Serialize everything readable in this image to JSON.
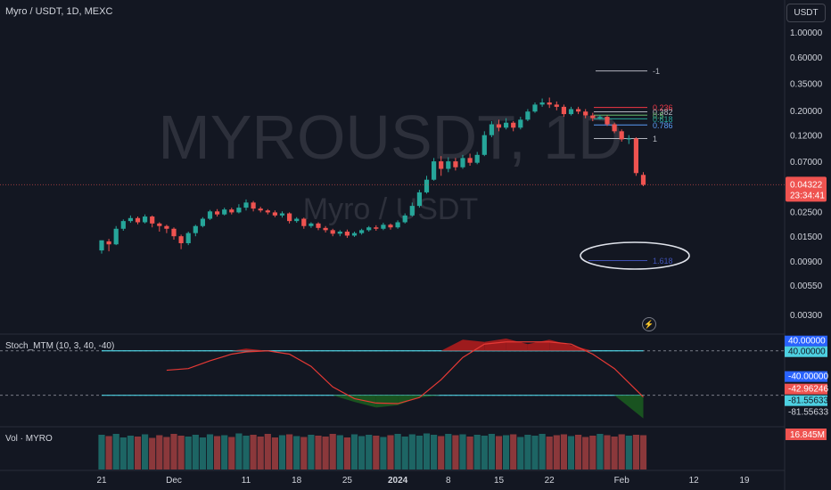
{
  "header": {
    "symbol": "Myro / USDT, 1D, MEXC"
  },
  "watermark": {
    "main": "MYROUSDT, 1D",
    "sub": "Myro / USDT"
  },
  "currency_button": "USDT",
  "indicator": {
    "name": "Stoch_MTM (10, 3, 40, -40)"
  },
  "volume": {
    "name": "Vol · MYRO",
    "last_label": "16.845M"
  },
  "colors": {
    "bg": "#131722",
    "up": "#26a69a",
    "down": "#ef5350",
    "text": "#d1d4dc",
    "grid": "#2a2e39"
  },
  "chart_data": [
    {
      "type": "candlestick",
      "scale": "log",
      "y_ticks": [
        "1.00000",
        "0.60000",
        "0.35000",
        "0.20000",
        "0.12000",
        "0.07000",
        "0.04322",
        "0.02500",
        "0.01500",
        "0.00900",
        "0.00550",
        "0.00300"
      ],
      "y_tick_values": [
        1.0,
        0.6,
        0.35,
        0.2,
        0.12,
        0.07,
        0.04322,
        0.025,
        0.015,
        0.009,
        0.0055,
        0.003
      ],
      "last_price": "0.04322",
      "countdown": "23:34:41",
      "x_ticks": [
        "21",
        "Dec",
        "11",
        "18",
        "25",
        "2024",
        "8",
        "15",
        "22",
        "Feb",
        "12",
        "19"
      ],
      "x_tick_days": [
        0,
        10,
        20,
        27,
        34,
        41,
        48,
        55,
        62,
        72,
        82,
        89
      ],
      "fib_levels": [
        {
          "label": "-1",
          "value": 0.45,
          "color": "#b2b5be"
        },
        {
          "label": "0.236",
          "value": 0.212,
          "color": "#f23645"
        },
        {
          "label": "0.382",
          "value": 0.194,
          "color": "#b2b5be"
        },
        {
          "label": "0.5",
          "value": 0.181,
          "color": "#66bb6a"
        },
        {
          "label": "0.618",
          "value": 0.168,
          "color": "#26a69a"
        },
        {
          "label": "0.786",
          "value": 0.148,
          "color": "#5b9cf6"
        },
        {
          "label": "1",
          "value": 0.112,
          "color": "#b2b5be"
        },
        {
          "label": "1.618",
          "value": 0.0091,
          "color": "#3f51b5"
        }
      ],
      "candles": [
        [
          0,
          0.0112,
          0.0138,
          0.0105,
          0.0135
        ],
        [
          1,
          0.0135,
          0.0127,
          0.011,
          0.0142
        ],
        [
          2,
          0.0127,
          0.0175,
          0.0125,
          0.0185
        ],
        [
          3,
          0.0175,
          0.0205,
          0.0168,
          0.0212
        ],
        [
          4,
          0.0205,
          0.0218,
          0.0198,
          0.023
        ],
        [
          5,
          0.0218,
          0.02,
          0.0192,
          0.0225
        ],
        [
          6,
          0.02,
          0.0225,
          0.0195,
          0.0235
        ],
        [
          7,
          0.0225,
          0.0195,
          0.018,
          0.023
        ],
        [
          8,
          0.0195,
          0.0185,
          0.0165,
          0.02
        ],
        [
          9,
          0.0185,
          0.0175,
          0.016,
          0.019
        ],
        [
          10,
          0.0175,
          0.015,
          0.014,
          0.018
        ],
        [
          11,
          0.015,
          0.013,
          0.0115,
          0.0155
        ],
        [
          12,
          0.013,
          0.016,
          0.0125,
          0.0165
        ],
        [
          13,
          0.016,
          0.0185,
          0.015,
          0.019
        ],
        [
          14,
          0.0185,
          0.0215,
          0.018,
          0.0222
        ],
        [
          15,
          0.0215,
          0.025,
          0.021,
          0.0258
        ],
        [
          16,
          0.025,
          0.0235,
          0.0225,
          0.0262
        ],
        [
          17,
          0.0235,
          0.026,
          0.023,
          0.027
        ],
        [
          18,
          0.026,
          0.0245,
          0.0235,
          0.027
        ],
        [
          19,
          0.0245,
          0.027,
          0.024,
          0.029
        ],
        [
          20,
          0.027,
          0.03,
          0.0255,
          0.032
        ],
        [
          21,
          0.03,
          0.0265,
          0.025,
          0.031
        ],
        [
          22,
          0.0265,
          0.0255,
          0.0245,
          0.0275
        ],
        [
          23,
          0.0255,
          0.0245,
          0.0235,
          0.0262
        ],
        [
          24,
          0.0245,
          0.023,
          0.0222,
          0.0255
        ],
        [
          25,
          0.023,
          0.024,
          0.022,
          0.025
        ],
        [
          26,
          0.024,
          0.0205,
          0.0195,
          0.0245
        ],
        [
          27,
          0.0205,
          0.0215,
          0.0198,
          0.0222
        ],
        [
          28,
          0.0215,
          0.0185,
          0.0175,
          0.022
        ],
        [
          29,
          0.0185,
          0.0195,
          0.0178,
          0.02
        ],
        [
          30,
          0.0195,
          0.0178,
          0.017,
          0.02
        ],
        [
          31,
          0.0178,
          0.017,
          0.0162,
          0.0185
        ],
        [
          32,
          0.017,
          0.0158,
          0.015,
          0.0175
        ],
        [
          33,
          0.0158,
          0.0165,
          0.015,
          0.017
        ],
        [
          34,
          0.0165,
          0.0152,
          0.0145,
          0.0172
        ],
        [
          35,
          0.0152,
          0.016,
          0.0148,
          0.0165
        ],
        [
          36,
          0.016,
          0.017,
          0.0155,
          0.0175
        ],
        [
          37,
          0.017,
          0.018,
          0.0165,
          0.0185
        ],
        [
          38,
          0.018,
          0.0175,
          0.0168,
          0.0188
        ],
        [
          39,
          0.0175,
          0.019,
          0.017,
          0.0198
        ],
        [
          40,
          0.019,
          0.018,
          0.0172,
          0.0195
        ],
        [
          41,
          0.018,
          0.02,
          0.0175,
          0.0208
        ],
        [
          42,
          0.02,
          0.023,
          0.0195,
          0.024
        ],
        [
          43,
          0.023,
          0.028,
          0.0225,
          0.03
        ],
        [
          44,
          0.028,
          0.037,
          0.027,
          0.039
        ],
        [
          45,
          0.037,
          0.048,
          0.036,
          0.052
        ],
        [
          46,
          0.048,
          0.07,
          0.047,
          0.075
        ],
        [
          47,
          0.07,
          0.06,
          0.052,
          0.078
        ],
        [
          48,
          0.06,
          0.07,
          0.056,
          0.076
        ],
        [
          49,
          0.07,
          0.062,
          0.058,
          0.075
        ],
        [
          50,
          0.062,
          0.075,
          0.06,
          0.08
        ],
        [
          51,
          0.075,
          0.068,
          0.064,
          0.082
        ],
        [
          52,
          0.068,
          0.08,
          0.066,
          0.085
        ],
        [
          53,
          0.08,
          0.12,
          0.078,
          0.13
        ],
        [
          54,
          0.12,
          0.15,
          0.115,
          0.16
        ],
        [
          55,
          0.15,
          0.14,
          0.13,
          0.165
        ],
        [
          56,
          0.14,
          0.155,
          0.135,
          0.17
        ],
        [
          57,
          0.155,
          0.14,
          0.13,
          0.16
        ],
        [
          58,
          0.14,
          0.165,
          0.135,
          0.175
        ],
        [
          59,
          0.165,
          0.195,
          0.16,
          0.205
        ],
        [
          60,
          0.195,
          0.225,
          0.19,
          0.235
        ],
        [
          61,
          0.225,
          0.235,
          0.215,
          0.255
        ],
        [
          62,
          0.235,
          0.225,
          0.21,
          0.26
        ],
        [
          63,
          0.225,
          0.215,
          0.2,
          0.24
        ],
        [
          64,
          0.215,
          0.185,
          0.175,
          0.225
        ],
        [
          65,
          0.185,
          0.205,
          0.18,
          0.215
        ],
        [
          66,
          0.205,
          0.195,
          0.185,
          0.215
        ],
        [
          67,
          0.195,
          0.18,
          0.17,
          0.205
        ],
        [
          68,
          0.18,
          0.17,
          0.16,
          0.19
        ],
        [
          69,
          0.17,
          0.175,
          0.165,
          0.182
        ],
        [
          70,
          0.175,
          0.15,
          0.145,
          0.18
        ],
        [
          71,
          0.15,
          0.13,
          0.125,
          0.155
        ],
        [
          72,
          0.13,
          0.11,
          0.105,
          0.135
        ],
        [
          73,
          0.11,
          0.112,
          0.1,
          0.12
        ],
        [
          74,
          0.112,
          0.055,
          0.052,
          0.115
        ],
        [
          75,
          0.053,
          0.04322,
          0.042,
          0.056
        ]
      ]
    },
    {
      "type": "line",
      "name": "Stoch_MTM (10, 3, 40, -40)",
      "y_labels": [
        "40.00000",
        "40.00000",
        "-40.00000",
        "-42.96246",
        "-81.55633",
        "-81.55633"
      ],
      "levels": [
        40,
        -40
      ],
      "x": [
        9,
        12,
        15,
        18,
        20,
        23,
        26,
        29,
        32,
        35,
        38,
        41,
        44,
        47,
        50,
        53,
        56,
        59,
        62,
        65,
        68,
        71,
        75
      ],
      "series": [
        {
          "name": "",
          "values": [
            5,
            8,
            22,
            34,
            38,
            40,
            34,
            12,
            -25,
            -46,
            -54,
            -55,
            -44,
            -12,
            28,
            52,
            56,
            56,
            56,
            52,
            34,
            8,
            -42.96
          ]
        },
        {
          "name": "",
          "values": [
            40,
            40,
            40,
            40,
            44,
            40,
            40,
            40,
            40,
            -52,
            -62,
            -58,
            -44,
            40,
            60,
            56,
            62,
            52,
            60,
            50,
            40,
            40,
            -81.56
          ]
        }
      ]
    },
    {
      "type": "bar",
      "name": "Vol · MYRO",
      "last": "16.845M",
      "values": [
        78,
        75,
        80,
        72,
        76,
        74,
        79,
        71,
        77,
        73,
        80,
        76,
        74,
        78,
        72,
        79,
        75,
        77,
        73,
        81,
        76,
        78,
        74,
        80,
        72,
        77,
        79,
        75,
        73,
        78,
        76,
        74,
        80,
        77,
        72,
        79,
        75,
        78,
        76,
        73,
        77,
        80,
        74,
        79,
        76,
        81,
        78,
        75,
        80,
        77,
        79,
        74,
        78,
        76,
        80,
        75,
        77,
        79,
        73,
        78,
        76,
        80,
        74,
        77,
        79,
        75,
        78,
        73,
        76,
        80,
        77,
        74,
        79,
        76,
        78,
        77
      ],
      "up": [
        1,
        0,
        1,
        1,
        1,
        0,
        1,
        0,
        0,
        0,
        0,
        0,
        1,
        1,
        1,
        1,
        0,
        1,
        0,
        1,
        1,
        0,
        0,
        0,
        0,
        1,
        0,
        1,
        0,
        1,
        0,
        0,
        0,
        1,
        0,
        1,
        1,
        1,
        0,
        1,
        0,
        1,
        1,
        1,
        1,
        1,
        1,
        0,
        1,
        0,
        1,
        0,
        1,
        1,
        1,
        0,
        1,
        0,
        1,
        1,
        1,
        1,
        0,
        0,
        0,
        1,
        0,
        0,
        0,
        1,
        0,
        0,
        0,
        1,
        0,
        0
      ]
    }
  ]
}
